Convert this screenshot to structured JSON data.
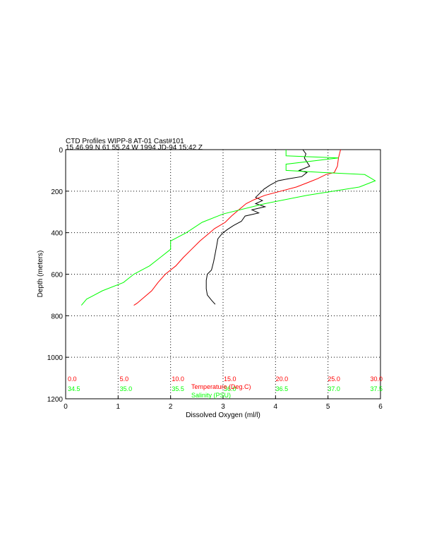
{
  "chart_data": {
    "type": "line",
    "title_line1": "CTD Profiles WIPP-8 AT-01 Cast#101",
    "title_line2": "15 46.99 N 61 55.24 W 1994 JD-94 15:42 Z",
    "xlabel": "Dissolved Oxygen (ml/l)",
    "ylabel": "Depth (meters)",
    "xlim": [
      0,
      6
    ],
    "ylim": [
      0,
      1200
    ],
    "y_inverted": true,
    "grid": "dotted",
    "x_ticks": [
      "0",
      "1",
      "2",
      "3",
      "4",
      "5",
      "6"
    ],
    "y_ticks": [
      "0",
      "200",
      "400",
      "600",
      "800",
      "1000",
      "1200"
    ],
    "x_tick_values": [
      0,
      1,
      2,
      3,
      4,
      5,
      6
    ],
    "y_tick_values": [
      0,
      200,
      400,
      600,
      800,
      1000,
      1200
    ],
    "secondary_scales": [
      {
        "name": "Temperature (Deg.C)",
        "color": "#ff0000",
        "ticks": [
          "0.0",
          "5.0",
          "10.0",
          "15.0",
          "20.0",
          "25.0",
          "30.0"
        ]
      },
      {
        "name": "Salinity (PSU)",
        "color": "#00ff00",
        "ticks": [
          "34.5",
          "35.0",
          "35.5",
          "36.0",
          "36.5",
          "37.0",
          "37.5"
        ]
      }
    ],
    "series": [
      {
        "name": "Dissolved Oxygen (ml/l)",
        "color": "#000000",
        "points": [
          [
            4.52,
            0
          ],
          [
            4.58,
            20
          ],
          [
            4.55,
            40
          ],
          [
            4.6,
            60
          ],
          [
            4.65,
            80
          ],
          [
            4.55,
            90
          ],
          [
            4.45,
            100
          ],
          [
            4.6,
            110
          ],
          [
            4.5,
            130
          ],
          [
            4.25,
            140
          ],
          [
            4.05,
            150
          ],
          [
            3.9,
            170
          ],
          [
            3.78,
            190
          ],
          [
            3.7,
            210
          ],
          [
            3.62,
            230
          ],
          [
            3.75,
            245
          ],
          [
            3.62,
            260
          ],
          [
            3.8,
            275
          ],
          [
            3.55,
            290
          ],
          [
            3.68,
            305
          ],
          [
            3.42,
            320
          ],
          [
            3.35,
            345
          ],
          [
            3.2,
            365
          ],
          [
            3.08,
            385
          ],
          [
            2.98,
            405
          ],
          [
            2.9,
            430
          ],
          [
            2.88,
            460
          ],
          [
            2.85,
            500
          ],
          [
            2.82,
            540
          ],
          [
            2.78,
            580
          ],
          [
            2.7,
            600
          ],
          [
            2.68,
            630
          ],
          [
            2.68,
            670
          ],
          [
            2.7,
            700
          ],
          [
            2.78,
            725
          ],
          [
            2.85,
            745
          ]
        ]
      },
      {
        "name": "Temperature (Deg.C)",
        "color": "#ff0000",
        "points": [
          [
            26.2,
            0
          ],
          [
            26.0,
            40
          ],
          [
            25.9,
            80
          ],
          [
            25.6,
            110
          ],
          [
            24.8,
            120
          ],
          [
            24.0,
            140
          ],
          [
            23.0,
            160
          ],
          [
            22.0,
            180
          ],
          [
            20.5,
            200
          ],
          [
            19.0,
            220
          ],
          [
            18.0,
            240
          ],
          [
            17.2,
            260
          ],
          [
            16.5,
            290
          ],
          [
            15.8,
            320
          ],
          [
            15.2,
            350
          ],
          [
            14.2,
            380
          ],
          [
            13.5,
            410
          ],
          [
            12.8,
            440
          ],
          [
            12.0,
            480
          ],
          [
            11.2,
            520
          ],
          [
            10.5,
            560
          ],
          [
            9.5,
            600
          ],
          [
            8.8,
            640
          ],
          [
            8.2,
            680
          ],
          [
            7.5,
            710
          ],
          [
            6.8,
            740
          ],
          [
            6.5,
            750
          ]
        ]
      },
      {
        "name": "Salinity (PSU)",
        "color": "#00ff00",
        "points": [
          [
            36.6,
            0
          ],
          [
            36.6,
            30
          ],
          [
            37.1,
            40
          ],
          [
            36.6,
            70
          ],
          [
            36.6,
            100
          ],
          [
            36.95,
            110
          ],
          [
            37.35,
            120
          ],
          [
            37.45,
            150
          ],
          [
            37.3,
            180
          ],
          [
            36.8,
            220
          ],
          [
            36.4,
            260
          ],
          [
            36.0,
            310
          ],
          [
            35.8,
            350
          ],
          [
            35.65,
            400
          ],
          [
            35.5,
            440
          ],
          [
            35.5,
            480
          ],
          [
            35.4,
            520
          ],
          [
            35.3,
            560
          ],
          [
            35.15,
            600
          ],
          [
            35.05,
            640
          ],
          [
            34.85,
            680
          ],
          [
            34.7,
            720
          ],
          [
            34.65,
            750
          ]
        ]
      }
    ]
  }
}
